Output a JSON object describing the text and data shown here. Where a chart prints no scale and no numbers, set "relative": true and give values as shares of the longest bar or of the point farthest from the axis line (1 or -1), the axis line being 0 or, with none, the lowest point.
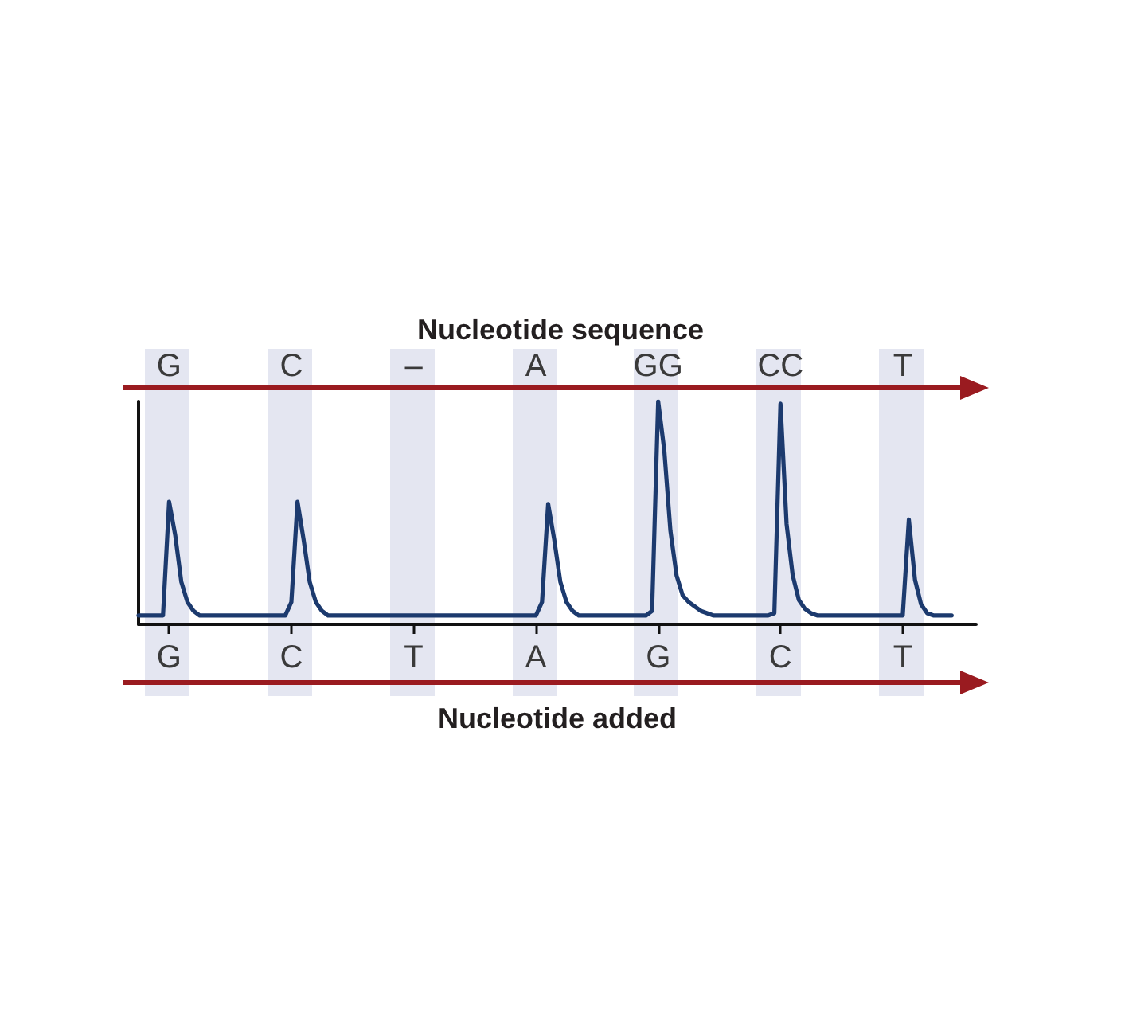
{
  "chart_data": {
    "type": "line",
    "title": "Nucleotide sequence",
    "xlabel": "Nucleotide added",
    "relative": true,
    "color": "#1c3a6e",
    "categories": [
      null,
      null,
      null,
      null,
      null,
      "G",
      null,
      null,
      null,
      null,
      null,
      null,
      null,
      null,
      null,
      null,
      null,
      null,
      null,
      null,
      null,
      null,
      null,
      null,
      null,
      "C",
      null,
      null,
      null,
      null,
      null,
      null,
      null,
      null,
      null,
      null,
      null,
      null,
      null,
      null,
      null,
      null,
      null,
      null,
      null,
      "T",
      null,
      null,
      null,
      null,
      null,
      null,
      null,
      null,
      null,
      null,
      null,
      null,
      null,
      null,
      null,
      null,
      null,
      null,
      null,
      "A",
      null,
      null,
      null,
      null,
      null,
      null,
      null,
      null,
      null,
      null,
      null,
      null,
      null,
      null,
      null,
      null,
      null,
      null,
      null,
      "G",
      null,
      null,
      null,
      null,
      null,
      null,
      null,
      null,
      null,
      null,
      null,
      null,
      null,
      null,
      null,
      null,
      null,
      null,
      null,
      "C",
      null,
      null,
      null,
      null,
      null,
      null,
      null,
      null,
      null,
      null,
      null,
      null,
      null,
      null,
      null,
      null,
      null,
      null,
      null,
      "T",
      null,
      null,
      null,
      null,
      null,
      null,
      null,
      null,
      null,
      null,
      null,
      null
    ],
    "values": [
      0.04,
      0.04,
      0.04,
      0.04,
      0.04,
      0.55,
      0.4,
      0.19,
      0.1,
      0.06,
      0.04,
      0.04,
      0.04,
      0.04,
      0.04,
      0.04,
      0.04,
      0.04,
      0.04,
      0.04,
      0.04,
      0.04,
      0.04,
      0.04,
      0.04,
      0.1,
      0.55,
      0.38,
      0.19,
      0.1,
      0.06,
      0.04,
      0.04,
      0.04,
      0.04,
      0.04,
      0.04,
      0.04,
      0.04,
      0.04,
      0.04,
      0.04,
      0.04,
      0.04,
      0.04,
      0.04,
      0.04,
      0.04,
      0.04,
      0.04,
      0.04,
      0.04,
      0.04,
      0.04,
      0.04,
      0.04,
      0.04,
      0.04,
      0.04,
      0.04,
      0.04,
      0.04,
      0.04,
      0.04,
      0.04,
      0.04,
      0.1,
      0.54,
      0.38,
      0.19,
      0.1,
      0.06,
      0.04,
      0.04,
      0.04,
      0.04,
      0.04,
      0.04,
      0.04,
      0.04,
      0.04,
      0.04,
      0.04,
      0.04,
      0.06,
      1,
      0.78,
      0.42,
      0.22,
      0.13,
      0.1,
      0.08,
      0.06,
      0.05,
      0.04,
      0.04,
      0.04,
      0.04,
      0.04,
      0.04,
      0.04,
      0.04,
      0.04,
      0.04,
      0.05,
      0.99,
      0.45,
      0.22,
      0.11,
      0.07,
      0.05,
      0.04,
      0.04,
      0.04,
      0.04,
      0.04,
      0.04,
      0.04,
      0.04,
      0.04,
      0.04,
      0.04,
      0.04,
      0.04,
      0.04,
      0.04,
      0.47,
      0.2,
      0.09,
      0.05,
      0.04,
      0.04,
      0.04,
      0.04,
      null,
      null,
      null,
      null
    ],
    "annotations": [
      "G",
      "C",
      "–",
      "A",
      "GG",
      "CC",
      "T"
    ]
  }
}
